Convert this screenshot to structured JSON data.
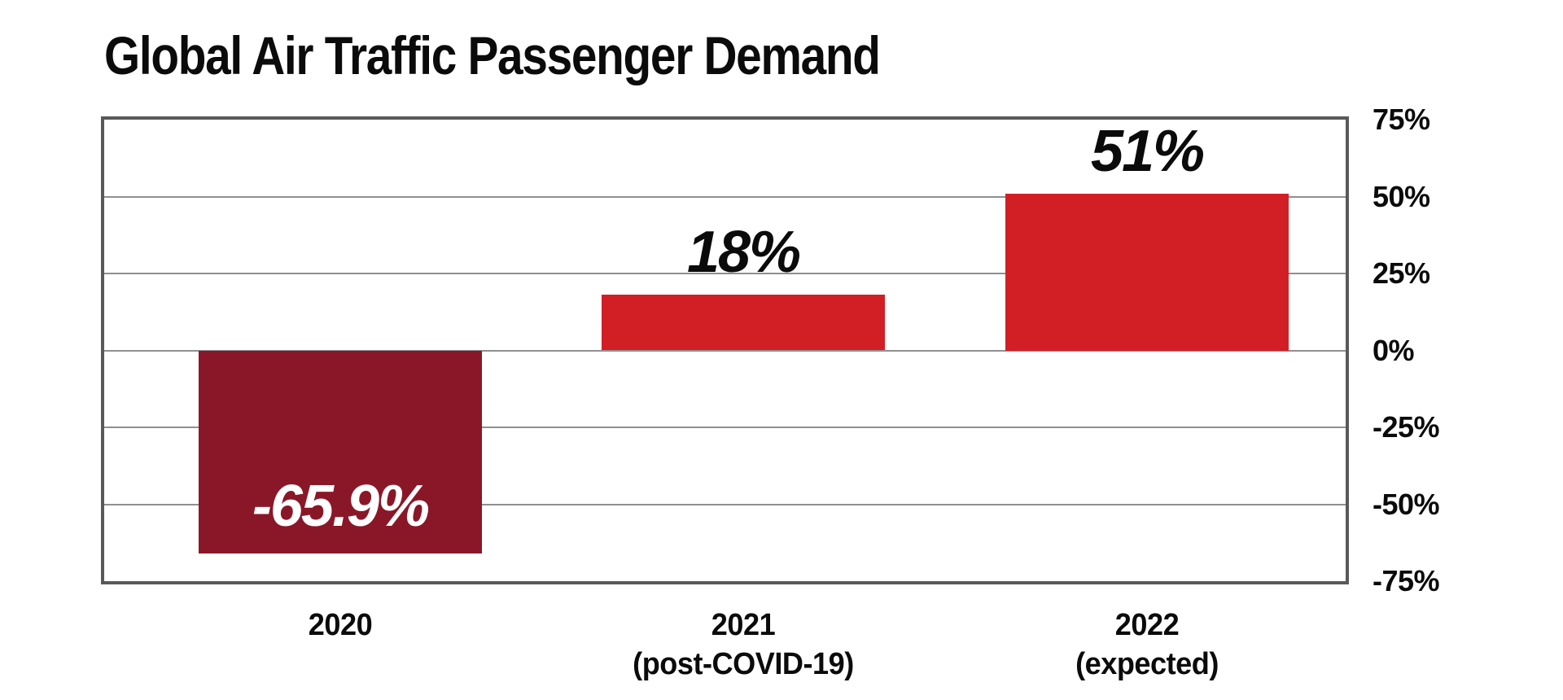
{
  "title": "Global Air Traffic Passenger Demand",
  "colors": {
    "positive_bar": "#d21f26",
    "negative_bar": "#8a1728",
    "frame": "#59595b",
    "gridline": "#8f8f91",
    "title_text": "#0b0b0b",
    "label_on_dark": "#ffffff"
  },
  "chart_data": {
    "type": "bar",
    "title": "Global Air Traffic Passenger Demand",
    "categories": [
      [
        "2020"
      ],
      [
        "2021",
        "(post-COVID-19)"
      ],
      [
        "2022",
        "(expected)"
      ]
    ],
    "values": [
      -65.9,
      18,
      51
    ],
    "value_labels": [
      "-65.9%",
      "18%",
      "51%"
    ],
    "bar_colors": [
      "#8a1728",
      "#d21f26",
      "#d21f26"
    ],
    "xlabel": "",
    "ylabel": "",
    "ylim": [
      -75,
      75
    ],
    "ytick_step": 25,
    "yticks": [
      "75%",
      "50%",
      "25%",
      "0%",
      "-25%",
      "-50%",
      "-75%"
    ],
    "grid": true,
    "legend": false,
    "y_axis_side": "right",
    "bar_centers_frac": [
      0.19,
      0.515,
      0.84
    ],
    "bar_width_frac": 0.228
  }
}
